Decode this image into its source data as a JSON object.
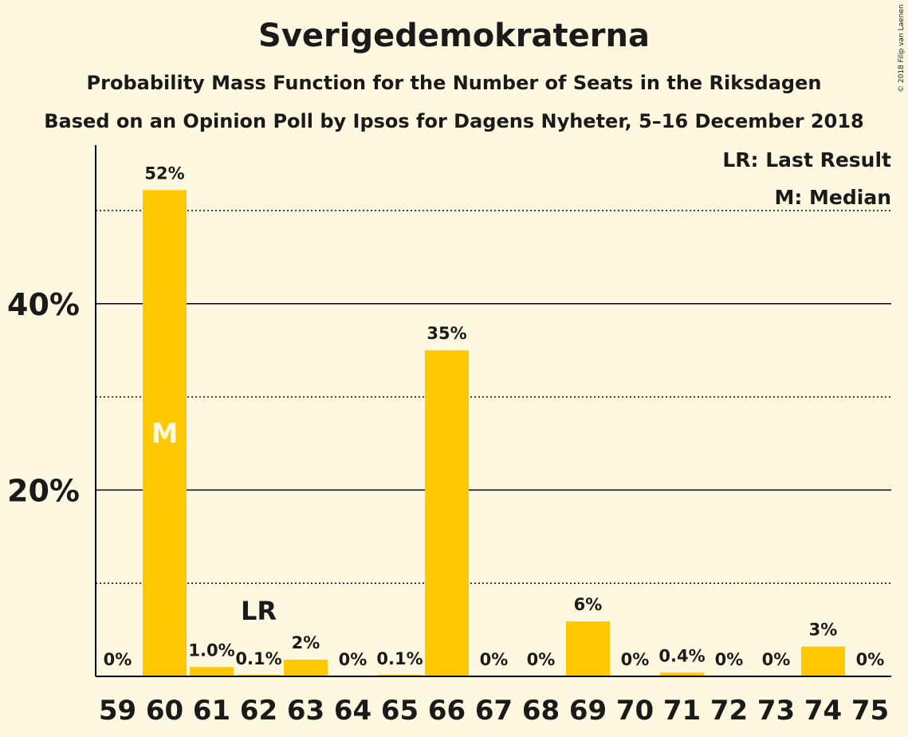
{
  "chart_data": {
    "type": "bar",
    "title": "Sverigedemokraterna",
    "subtitle": "Probability Mass Function for the Number of Seats in the Riksdagen",
    "subtitle2": "Based on an Opinion Poll by Ipsos for Dagens Nyheter, 5–16 December 2018",
    "categories": [
      "59",
      "60",
      "61",
      "62",
      "63",
      "64",
      "65",
      "66",
      "67",
      "68",
      "69",
      "70",
      "71",
      "72",
      "73",
      "74",
      "75"
    ],
    "values": [
      0,
      52,
      1.0,
      0.1,
      2,
      0,
      0.1,
      35,
      0,
      0,
      6,
      0,
      0.4,
      0,
      0,
      3,
      0
    ],
    "value_labels": [
      "0%",
      "52%",
      "1.0%",
      "0.1%",
      "2%",
      "0%",
      "0.1%",
      "35%",
      "0%",
      "0%",
      "6%",
      "0%",
      "0.4%",
      "0%",
      "0%",
      "3%",
      "0%"
    ],
    "bar_values": [
      0,
      52.2,
      1.0,
      0.1,
      1.8,
      0,
      0.1,
      35.0,
      0,
      0,
      5.9,
      0,
      0.4,
      0,
      0,
      3.2,
      0
    ],
    "ylim": [
      0,
      57
    ],
    "yticks": [
      {
        "value": 20,
        "label": "20%"
      },
      {
        "value": 40,
        "label": "40%"
      }
    ],
    "minor_gridlines": [
      10,
      30,
      50
    ],
    "median_category": "60",
    "median_label": "M",
    "last_result_category": "62",
    "last_result_label": "LR",
    "legend": [
      "LR: Last Result",
      "M: Median"
    ],
    "legend_position": "top-right",
    "bar_color": "#ffc800",
    "background_color": "#fff8e1"
  },
  "copyright": "© 2018 Filip van Laenen"
}
